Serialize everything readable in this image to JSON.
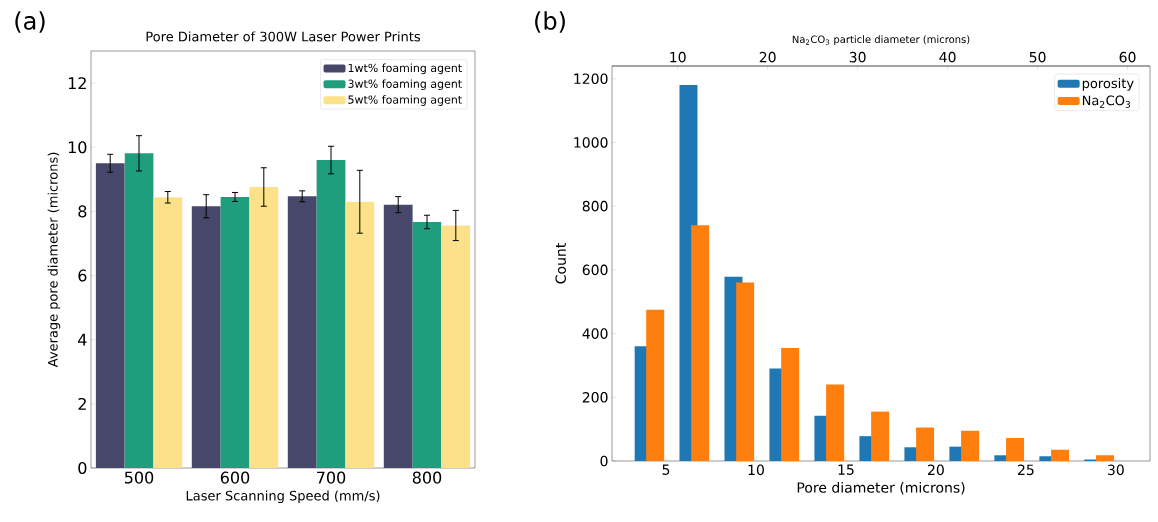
{
  "chart_data": [
    {
      "type": "bar",
      "title": "Pore Diameter of 300W Laser Power Prints",
      "xlabel": "Laser Scanning Speed (mm/s)",
      "ylabel": "Average pore diameter (microns)",
      "annotations": [
        "(a)"
      ],
      "categories": [
        "500",
        "600",
        "700",
        "800"
      ],
      "series": [
        {
          "name": "1wt% foaming agent",
          "color": "#47476b",
          "values": [
            9.5,
            8.16,
            8.47,
            8.21
          ],
          "errors": [
            0.28,
            0.36,
            0.17,
            0.25
          ]
        },
        {
          "name": "3wt% foaming agent",
          "color": "#1f9e7e",
          "values": [
            9.81,
            8.45,
            9.6,
            7.67
          ],
          "errors": [
            0.55,
            0.14,
            0.43,
            0.21
          ]
        },
        {
          "name": "5wt% foaming agent",
          "color": "#fde18a",
          "values": [
            8.44,
            8.76,
            8.3,
            7.56
          ],
          "errors": [
            0.18,
            0.6,
            0.98,
            0.47
          ]
        }
      ],
      "ylim": [
        0,
        13
      ],
      "yticks": [
        0,
        2,
        4,
        6,
        8,
        10,
        12
      ],
      "legend": "top right"
    },
    {
      "type": "bar",
      "xlabel": "Pore diameter (microns)",
      "ylabel": "Count",
      "x2label": "Na$_{2}$CO$_{3}$ particle diameter (microns)",
      "annotations": [
        "(b)"
      ],
      "series": [
        {
          "name": "porosity",
          "color": "#1f77b4",
          "x": [
            3.75,
            6.25,
            8.75,
            11.25,
            13.75,
            16.25,
            18.75,
            21.25,
            23.75,
            26.25,
            28.75
          ],
          "values": [
            360,
            1180,
            578,
            290,
            142,
            78,
            43,
            45,
            18,
            15,
            5
          ]
        },
        {
          "name": "Na$_{2}$CO$_{3}$",
          "color": "#ff7f0e",
          "axis": "x2",
          "x": [
            7.5,
            12.5,
            17.5,
            22.5,
            27.5,
            32.5,
            37.5,
            42.5,
            47.5,
            52.5,
            57.5
          ],
          "values": [
            475,
            740,
            560,
            355,
            240,
            155,
            105,
            95,
            72,
            35,
            18
          ]
        }
      ],
      "xlim": [
        2,
        31.9
      ],
      "xticks": [
        5,
        10,
        15,
        20,
        25,
        30
      ],
      "x2lim": [
        2.7,
        62.5
      ],
      "x2ticks": [
        10,
        20,
        30,
        40,
        50,
        60
      ],
      "ylim": [
        0,
        1240
      ],
      "yticks": [
        0,
        200,
        400,
        600,
        800,
        1000,
        1200
      ],
      "legend": "top right"
    }
  ]
}
